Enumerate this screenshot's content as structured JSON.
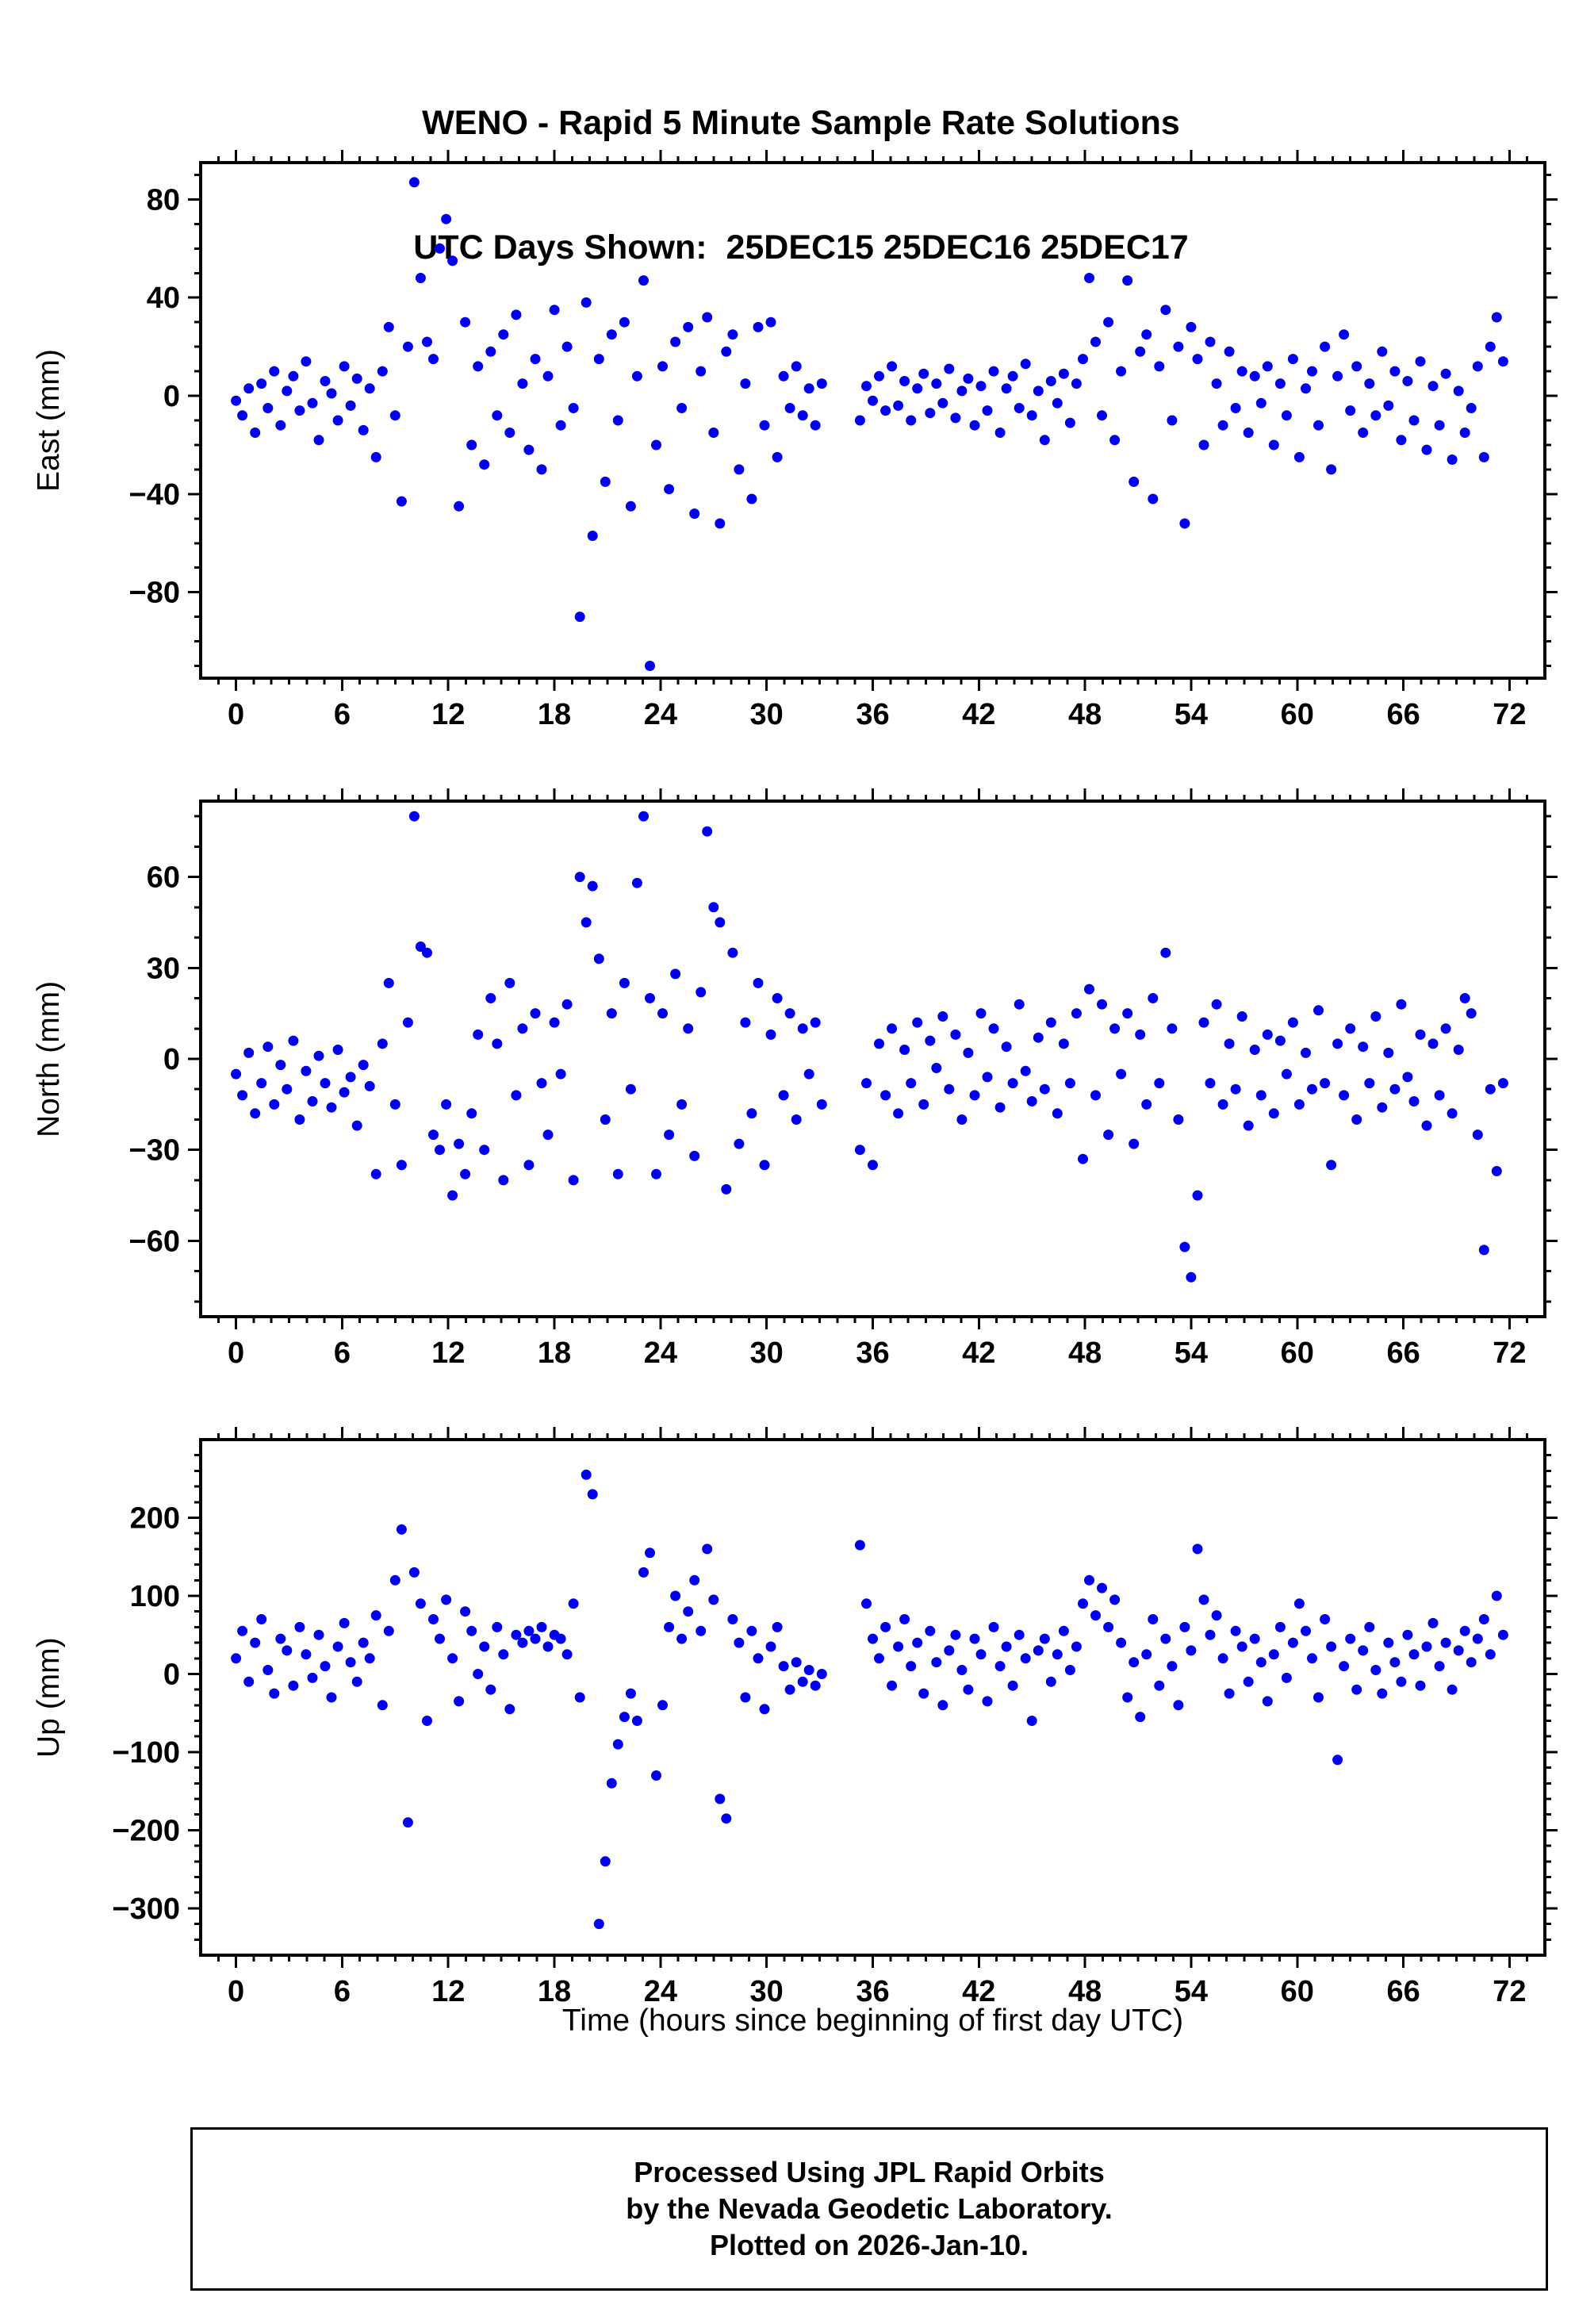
{
  "title": {
    "line1": "WENO - Rapid 5 Minute Sample Rate Solutions",
    "line2": "UTC Days Shown:  25DEC15 25DEC16 25DEC17"
  },
  "xlabel": "Time (hours since beginning of first day UTC)",
  "footer": {
    "line1": "Processed Using JPL Rapid Orbits",
    "line2": "by the Nevada Geodetic Laboratory.",
    "line3": "Plotted on 2026-Jan-10."
  },
  "chart_data": {
    "type": "scatter",
    "station": "WENO",
    "utc_days": [
      "25DEC15",
      "25DEC16",
      "25DEC17"
    ],
    "marker": {
      "shape": "circle",
      "color": "#0000ee",
      "radius_px": 6.5
    },
    "xlim": [
      -2,
      74
    ],
    "xticks": {
      "major": [
        0,
        6,
        12,
        18,
        24,
        30,
        36,
        42,
        48,
        54,
        60,
        66,
        72
      ],
      "minor_step": 1
    },
    "x": {
      "start": 0,
      "step": 0.36,
      "count": 200,
      "gaps": [
        [
          33.4,
          35.2
        ]
      ],
      "units": "hours"
    },
    "panels": [
      {
        "name": "east",
        "ylabel": "East (mm)",
        "ylim": [
          -115,
          95
        ],
        "yticks_major": [
          -80,
          -40,
          0,
          40,
          80
        ],
        "y_minor_step": 10,
        "y": [
          -2,
          -8,
          3,
          -15,
          5,
          -5,
          10,
          -12,
          2,
          8,
          -6,
          14,
          -3,
          -18,
          6,
          1,
          -10,
          12,
          -4,
          7,
          -14,
          3,
          -25,
          10,
          28,
          -8,
          -43,
          20,
          87,
          48,
          22,
          15,
          60,
          72,
          55,
          -45,
          30,
          -20,
          12,
          -28,
          18,
          -8,
          25,
          -15,
          33,
          5,
          -22,
          15,
          -30,
          8,
          35,
          -12,
          20,
          -5,
          -90,
          38,
          -57,
          15,
          -35,
          25,
          -10,
          30,
          -45,
          8,
          47,
          -110,
          -20,
          12,
          -38,
          22,
          -5,
          28,
          -48,
          10,
          32,
          -15,
          -52,
          18,
          25,
          -30,
          5,
          -42,
          28,
          -12,
          30,
          -25,
          8,
          -5,
          12,
          -8,
          3,
          -12,
          5,
          -10,
          4,
          -2,
          8,
          -6,
          12,
          -4,
          6,
          -10,
          3,
          9,
          -7,
          5,
          -3,
          11,
          -9,
          2,
          7,
          -12,
          4,
          -6,
          10,
          -15,
          3,
          8,
          -5,
          13,
          -8,
          2,
          -18,
          6,
          -3,
          9,
          -11,
          5,
          15,
          48,
          22,
          -8,
          30,
          -18,
          10,
          47,
          -35,
          18,
          25,
          -42,
          12,
          35,
          -10,
          20,
          -52,
          28,
          15,
          -20,
          22,
          5,
          -12,
          18,
          -5,
          10,
          -15,
          8,
          -3,
          12,
          -20,
          5,
          -8,
          15,
          -25,
          3,
          10,
          -12,
          20,
          -30,
          8,
          25,
          -6,
          12,
          -15,
          5,
          -8,
          18,
          -4,
          10,
          -18,
          6,
          -10,
          14,
          -22,
          4,
          -12,
          9,
          -26,
          2,
          -15,
          -5,
          12,
          -25,
          20,
          32,
          14
        ]
      },
      {
        "name": "north",
        "ylabel": "North (mm)",
        "ylim": [
          -85,
          85
        ],
        "yticks_major": [
          -60,
          -30,
          0,
          30,
          60
        ],
        "y_minor_step": 10,
        "y": [
          -5,
          -12,
          2,
          -18,
          -8,
          4,
          -15,
          -2,
          -10,
          6,
          -20,
          -4,
          -14,
          1,
          -8,
          -16,
          3,
          -11,
          -6,
          -22,
          -2,
          -9,
          -38,
          5,
          25,
          -15,
          -35,
          12,
          80,
          37,
          35,
          -25,
          -30,
          -15,
          -45,
          -28,
          -38,
          -18,
          8,
          -30,
          20,
          5,
          -40,
          25,
          -12,
          10,
          -35,
          15,
          -8,
          -25,
          12,
          -5,
          18,
          -40,
          60,
          45,
          57,
          33,
          -20,
          15,
          -38,
          25,
          -10,
          58,
          80,
          20,
          -38,
          15,
          -25,
          28,
          -15,
          10,
          -32,
          22,
          75,
          50,
          45,
          -43,
          35,
          -28,
          12,
          -18,
          25,
          -35,
          8,
          20,
          -12,
          15,
          -20,
          10,
          -5,
          12,
          -15,
          -30,
          -8,
          -35,
          5,
          -12,
          10,
          -18,
          3,
          -8,
          12,
          -15,
          6,
          -3,
          14,
          -10,
          8,
          -20,
          2,
          -12,
          15,
          -6,
          10,
          -16,
          4,
          -8,
          18,
          -4,
          -14,
          7,
          -10,
          12,
          -18,
          5,
          -8,
          15,
          -33,
          23,
          -12,
          18,
          -25,
          10,
          -5,
          15,
          -28,
          8,
          -15,
          20,
          -8,
          35,
          10,
          -20,
          -62,
          -72,
          -45,
          12,
          -8,
          18,
          -15,
          5,
          -10,
          14,
          -22,
          3,
          -12,
          8,
          -18,
          6,
          -5,
          12,
          -15,
          2,
          -10,
          16,
          -8,
          -35,
          5,
          -12,
          10,
          -20,
          4,
          -8,
          14,
          -16,
          2,
          -10,
          18,
          -6,
          -14,
          8,
          -22,
          5,
          -12,
          10,
          -18,
          3,
          20,
          15,
          -25,
          -63,
          -10,
          -37,
          -8
        ]
      },
      {
        "name": "up",
        "ylabel": "Up (mm)",
        "ylim": [
          -360,
          300
        ],
        "yticks_major": [
          -300,
          -200,
          -100,
          0,
          100,
          200
        ],
        "y_minor_step": 20,
        "y": [
          20,
          55,
          -10,
          40,
          70,
          5,
          -25,
          45,
          30,
          -15,
          60,
          25,
          -5,
          50,
          10,
          -30,
          35,
          65,
          15,
          -10,
          40,
          20,
          75,
          -40,
          55,
          120,
          185,
          -190,
          130,
          90,
          -60,
          70,
          45,
          95,
          20,
          -35,
          80,
          55,
          0,
          35,
          -20,
          60,
          25,
          -45,
          50,
          40,
          55,
          45,
          60,
          35,
          50,
          45,
          25,
          90,
          -30,
          255,
          230,
          -320,
          -240,
          -140,
          -90,
          -55,
          -25,
          -60,
          130,
          155,
          -130,
          -40,
          60,
          100,
          45,
          80,
          120,
          55,
          160,
          95,
          -160,
          -185,
          70,
          40,
          -30,
          55,
          20,
          -45,
          35,
          60,
          10,
          -20,
          15,
          -10,
          5,
          -15,
          0,
          165,
          90,
          45,
          20,
          60,
          -15,
          35,
          70,
          10,
          40,
          -25,
          55,
          15,
          -40,
          30,
          50,
          5,
          -20,
          45,
          25,
          -35,
          60,
          10,
          35,
          -15,
          50,
          20,
          -60,
          30,
          45,
          -10,
          25,
          55,
          5,
          35,
          90,
          120,
          75,
          110,
          60,
          95,
          40,
          -30,
          15,
          -55,
          25,
          70,
          -15,
          45,
          10,
          -40,
          60,
          30,
          160,
          95,
          50,
          75,
          20,
          -25,
          55,
          35,
          -10,
          45,
          15,
          -35,
          25,
          60,
          -5,
          40,
          90,
          55,
          20,
          -30,
          70,
          35,
          -110,
          10,
          45,
          -20,
          30,
          60,
          5,
          -25,
          40,
          15,
          -10,
          50,
          25,
          -15,
          35,
          65,
          10,
          40,
          -20,
          30,
          55,
          15,
          45,
          70,
          25,
          100,
          50
        ]
      }
    ]
  }
}
